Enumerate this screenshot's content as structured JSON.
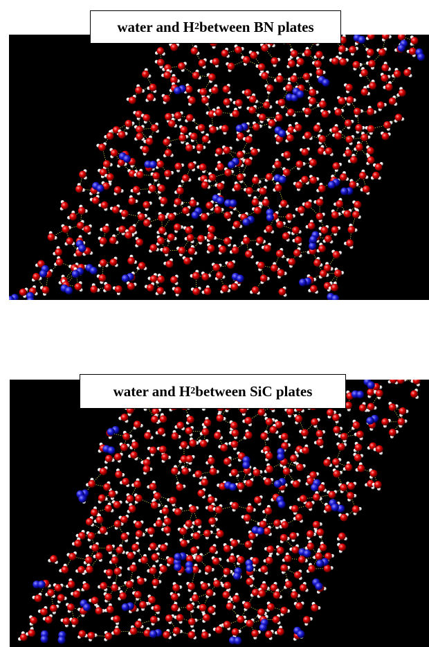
{
  "figure": {
    "panels": [
      {
        "id": "bn",
        "caption_prefix": "water and H",
        "caption_subscript": "2",
        "caption_suffix": " between BN plates",
        "background": "#000000"
      },
      {
        "id": "sic",
        "caption_prefix": "water and H",
        "caption_subscript": "2",
        "caption_suffix": " between SiC plates",
        "background": "#000000"
      }
    ],
    "colors": {
      "oxygen": "#e00000",
      "hydrogen_water": "#e6e6e6",
      "hydrogen_molecule": "#1a1ad0",
      "hydrogen_bond": "#d8d840"
    },
    "legend_atoms": [
      "oxygen (red)",
      "hydrogen (white)",
      "H2 molecule (blue)",
      "hydrogen bond (yellow dotted)"
    ]
  }
}
